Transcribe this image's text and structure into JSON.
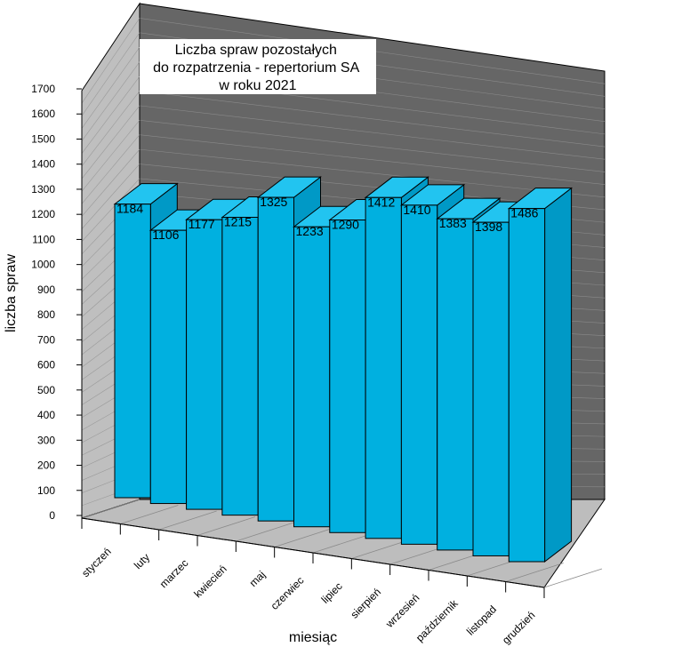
{
  "chart_data": {
    "type": "bar",
    "title": "Liczba spraw pozostałych\ndo rozpatrzenia - repertorium SA\nw roku 2021",
    "xlabel": "miesiąc",
    "ylabel": "liczba spraw",
    "ylim": [
      0,
      1700
    ],
    "yticks": [
      0,
      100,
      200,
      300,
      400,
      500,
      600,
      700,
      800,
      900,
      1000,
      1100,
      1200,
      1300,
      1400,
      1500,
      1600,
      1700
    ],
    "categories": [
      "styczeń",
      "luty",
      "marzec",
      "kwiecień",
      "maj",
      "czerwiec",
      "lipiec",
      "sierpień",
      "wrzesień",
      "październik",
      "listopad",
      "grudzień"
    ],
    "values": [
      1184,
      1106,
      1177,
      1215,
      1325,
      1233,
      1290,
      1412,
      1410,
      1383,
      1398,
      1486
    ],
    "data_labels": true,
    "grid": false,
    "legend": "none",
    "three_d": true
  },
  "colors": {
    "bar_front": "#00b0e0",
    "bar_side": "#0099c6",
    "bar_top": "#22c4f0",
    "back_wall": "#666666",
    "left_wall": "#bfbfbf",
    "floor": "#bdbdbd"
  }
}
